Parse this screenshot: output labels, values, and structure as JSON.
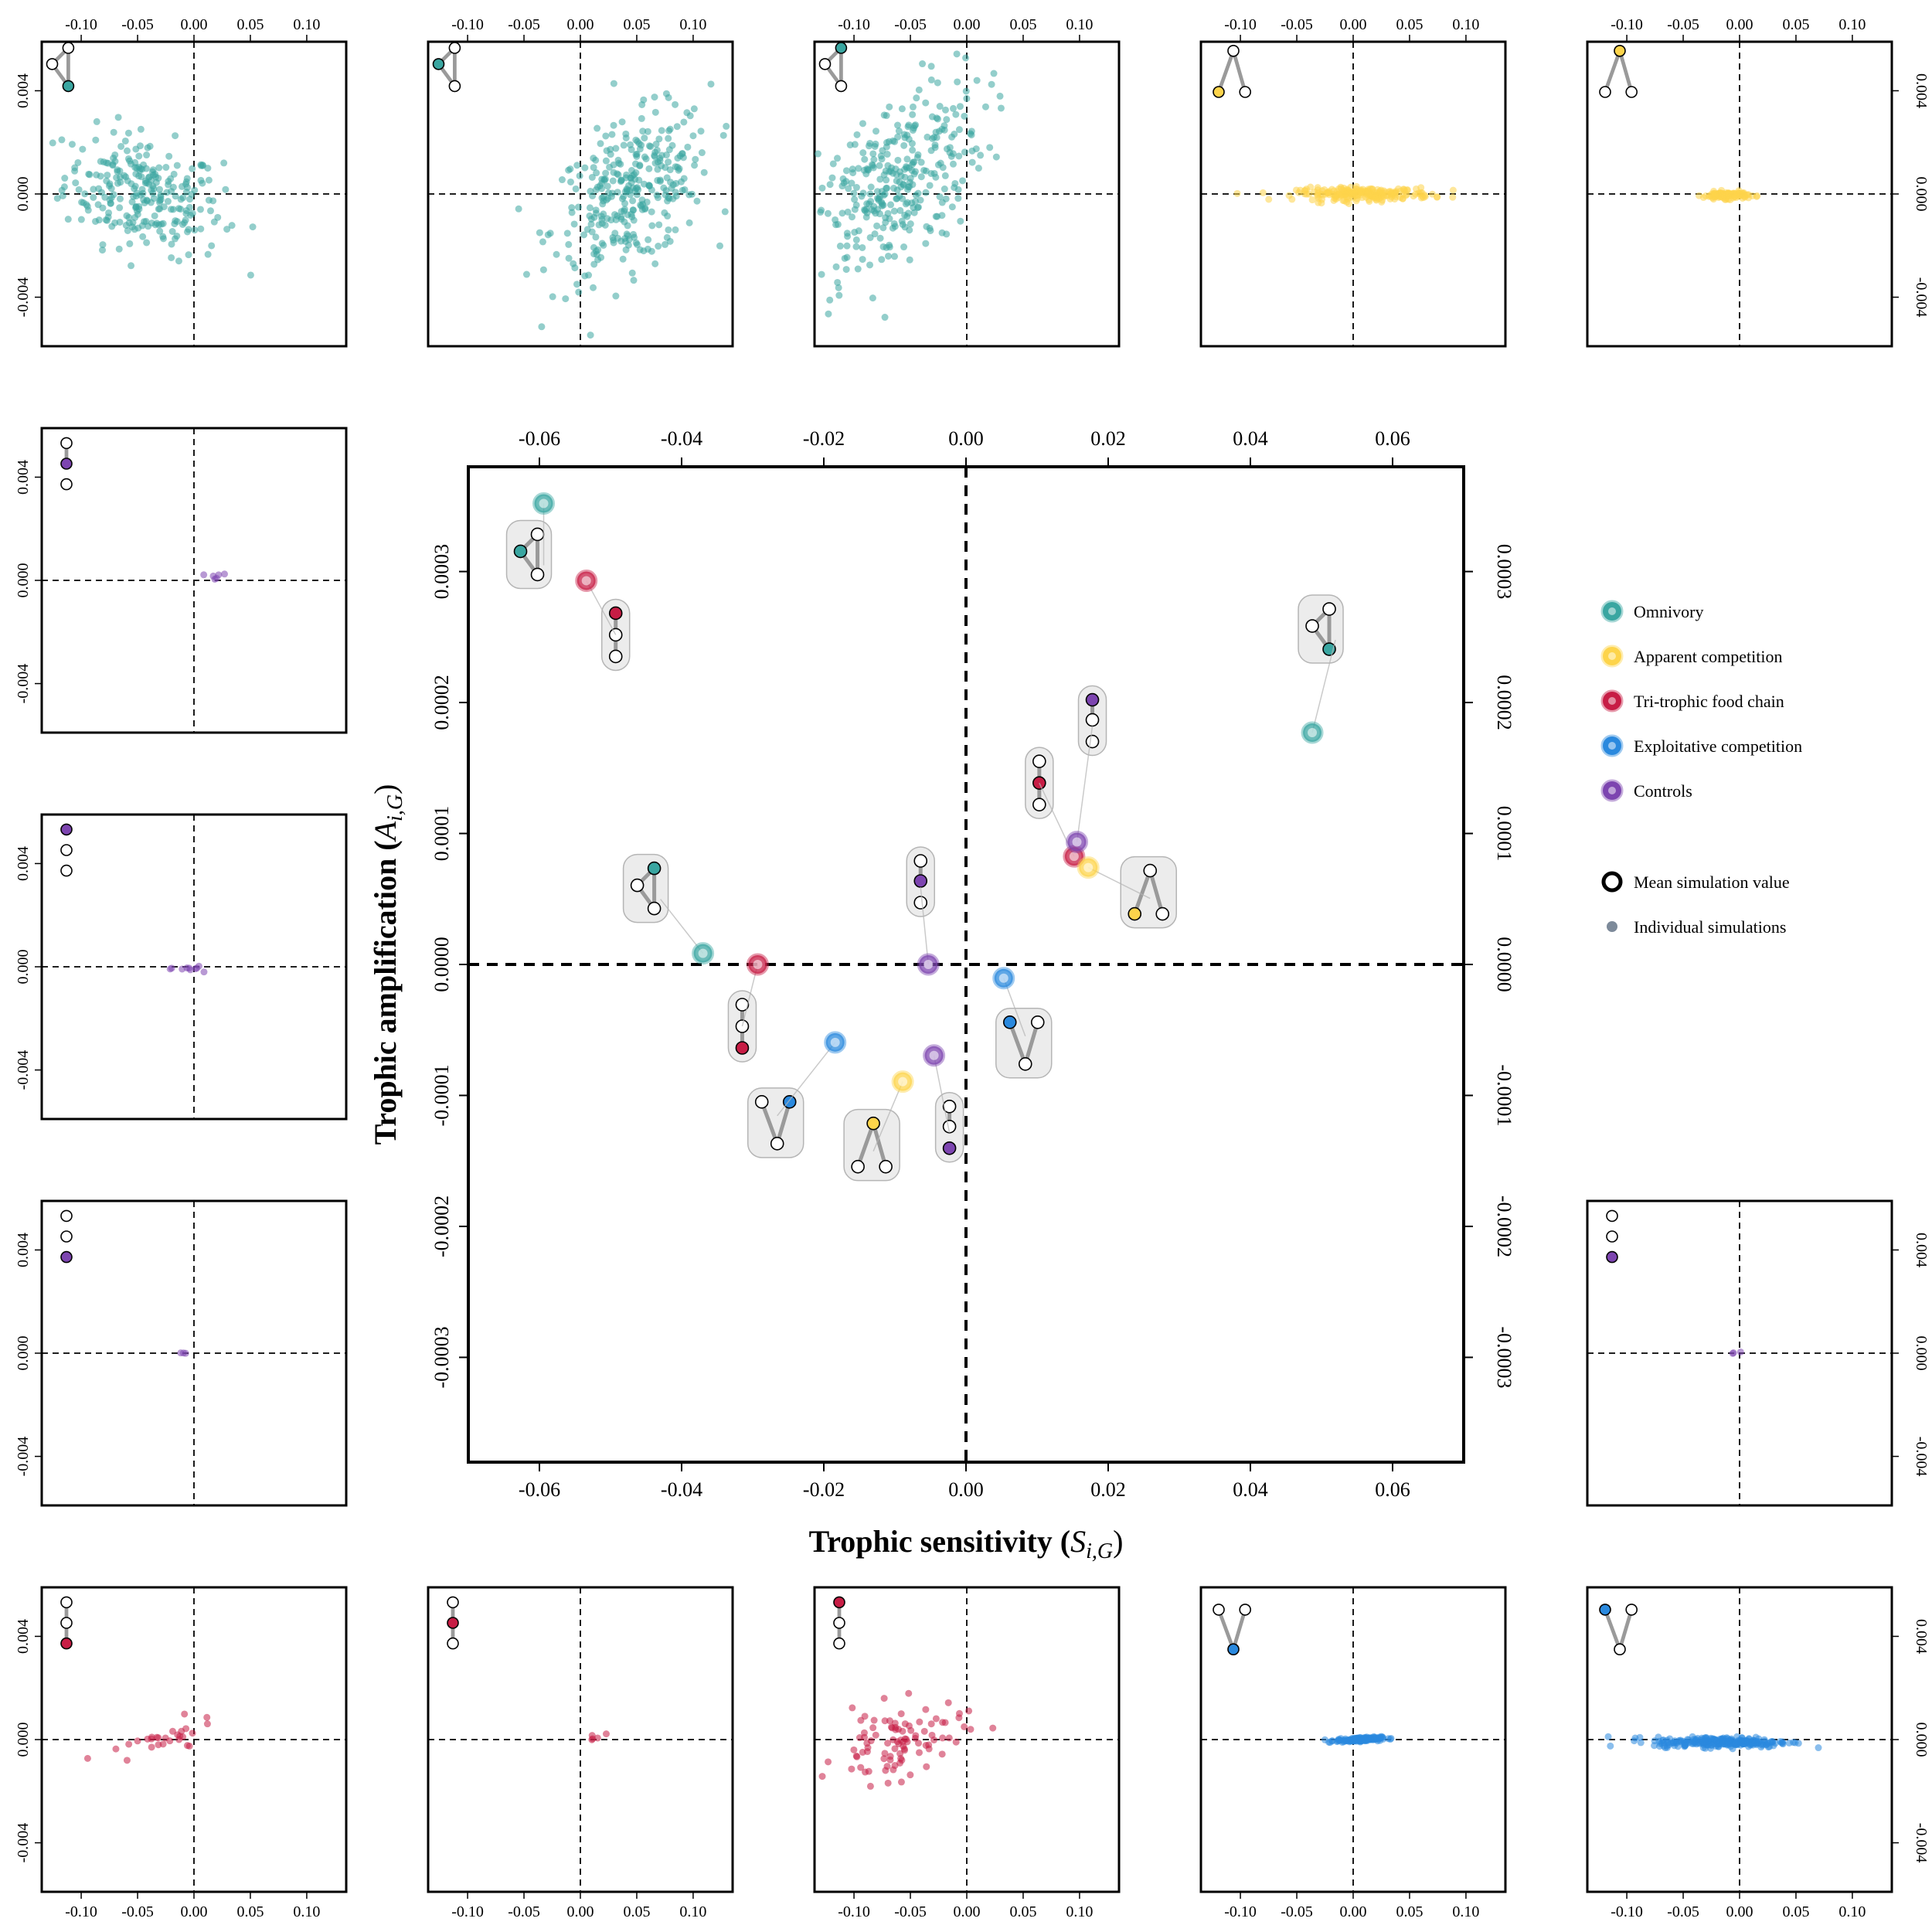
{
  "colors": {
    "omnivory": "#3aa6a1",
    "apparent_competition": "#fdd44b",
    "tri_trophic_food_chain": "#c71d45",
    "exploitative_competition": "#2a89de",
    "controls": "#7d45b0",
    "mean": "#000000",
    "individual": "#7d8a9a"
  },
  "legend": {
    "items": [
      {
        "key": "omnivory",
        "label": "Omnivory"
      },
      {
        "key": "apparent_competition",
        "label": "Apparent competition"
      },
      {
        "key": "tri_trophic_food_chain",
        "label": "Tri-trophic food chain"
      },
      {
        "key": "exploitative_competition",
        "label": "Exploitative competition"
      },
      {
        "key": "controls",
        "label": "Controls"
      }
    ],
    "extra": [
      {
        "key": "mean",
        "label": "Mean simulation value"
      },
      {
        "key": "individual",
        "label": "Individual simulations"
      }
    ]
  },
  "chart_data": {
    "type": "scatter",
    "main": {
      "xlabel": "Trophic sensitivity",
      "xlabel_symbol": "S",
      "xlabel_sub": "i,G",
      "ylabel": "Trophic amplification",
      "ylabel_symbol": "A",
      "ylabel_sub": "i,G",
      "xlim": [
        -0.07,
        0.07
      ],
      "ylim": [
        -0.00038,
        0.00038
      ],
      "xticks": [
        "-0.06",
        "-0.04",
        "-0.02",
        "0.00",
        "0.02",
        "0.04",
        "0.06"
      ],
      "xtick_values": [
        -0.06,
        -0.04,
        -0.02,
        0,
        0.02,
        0.04,
        0.06
      ],
      "yticks": [
        "-0.0003",
        "-0.0002",
        "-0.0001",
        "0.0000",
        "0.0001",
        "0.0002",
        "0.0003"
      ],
      "ytick_values": [
        -0.0003,
        -0.0002,
        -0.0001,
        0,
        0.0001,
        0.0002,
        0.0003
      ],
      "points": [
        {
          "group": "omnivory",
          "node": 0,
          "x": -0.0594,
          "y": 0.000352,
          "motif": "tri_omni"
        },
        {
          "group": "tri_trophic_food_chain",
          "node": 0,
          "x": -0.0534,
          "y": 0.000293,
          "motif": "chain"
        },
        {
          "group": "omnivory",
          "node": 1,
          "x": -0.037,
          "y": 8.5e-06,
          "motif": "tri_omni"
        },
        {
          "group": "tri_trophic_food_chain",
          "node": 2,
          "x": -0.0293,
          "y": 0.0,
          "motif": "chain"
        },
        {
          "group": "exploitative_competition",
          "node": 1,
          "x": -0.0184,
          "y": -5.95e-05,
          "motif": "v"
        },
        {
          "group": "apparent_competition",
          "node": 0,
          "x": -0.0089,
          "y": -8.95e-05,
          "motif": "lambda"
        },
        {
          "group": "controls",
          "node": 1,
          "x": -0.0053,
          "y": 0.0,
          "motif": "pair"
        },
        {
          "group": "controls",
          "node": 2,
          "x": -0.0045,
          "y": -6.95e-05,
          "motif": "pair"
        },
        {
          "group": "exploitative_competition",
          "node": 0,
          "x": 0.0053,
          "y": -1.05e-05,
          "motif": "v"
        },
        {
          "group": "tri_trophic_food_chain",
          "node": 1,
          "x": 0.0152,
          "y": 8.25e-05,
          "motif": "chain"
        },
        {
          "group": "controls",
          "node": 0,
          "x": 0.0156,
          "y": 9.35e-05,
          "motif": "pair"
        },
        {
          "group": "apparent_competition",
          "node": 1,
          "x": 0.0172,
          "y": 7.4e-05,
          "motif": "lambda"
        },
        {
          "group": "omnivory",
          "node": 2,
          "x": 0.0487,
          "y": 0.000177,
          "motif": "tri_omni"
        }
      ]
    },
    "small_multiples": {
      "xticks": [
        "-0.10",
        "-0.05",
        "0.00",
        "0.05",
        "0.10"
      ],
      "xtick_values": [
        -0.1,
        -0.05,
        0,
        0.05,
        0.1
      ],
      "yticks": [
        "-0.004",
        "0.000",
        "0.004"
      ],
      "ytick_values": [
        -0.004,
        0,
        0.004
      ],
      "xlim": [
        -0.135,
        0.135
      ],
      "ylim": [
        -0.0059,
        0.0059
      ],
      "panels": [
        {
          "id": "omni-1",
          "group": "omnivory",
          "motif": "tri_omni",
          "highlight": 2,
          "cloud": {
            "cx": -0.045,
            "cy": 0.0,
            "sx": 0.035,
            "sy": 0.0011,
            "n": 260,
            "tilt": -0.01
          }
        },
        {
          "id": "omni-2",
          "group": "omnivory",
          "motif": "tri_omni",
          "highlight": 0,
          "cloud": {
            "cx": 0.045,
            "cy": 0.0,
            "sx": 0.035,
            "sy": 0.0014,
            "n": 320,
            "tilt": 0.02
          }
        },
        {
          "id": "omni-3",
          "group": "omnivory",
          "motif": "tri_omni",
          "highlight": 1,
          "cloud": {
            "cx": -0.065,
            "cy": 0.0003,
            "sx": 0.04,
            "sy": 0.0017,
            "n": 340,
            "tilt": 0.03
          }
        },
        {
          "id": "app-1",
          "group": "apparent_competition",
          "motif": "lambda",
          "highlight": 1,
          "cloud": {
            "cx": 0.01,
            "cy": 0.0,
            "sx": 0.03,
            "sy": 0.00012,
            "n": 220,
            "tilt": 0.0
          }
        },
        {
          "id": "app-2",
          "group": "apparent_competition",
          "motif": "lambda",
          "highlight": 0,
          "cloud": {
            "cx": -0.012,
            "cy": -5e-05,
            "sx": 0.01,
            "sy": 7e-05,
            "n": 120,
            "tilt": 0.0
          }
        },
        {
          "id": "ctrl-1",
          "group": "controls",
          "motif": "pair_top",
          "highlight": 1,
          "cloud": {
            "cx": 0.018,
            "cy": 7e-05,
            "sx": 0.008,
            "sy": 8e-05,
            "n": 6,
            "tilt": 0.005
          }
        },
        {
          "id": "ctrl-2",
          "group": "controls",
          "motif": "pair_bottom",
          "highlight": 0,
          "cloud": {
            "cx": 0.0,
            "cy": -5e-05,
            "sx": 0.008,
            "sy": 6e-05,
            "n": 10,
            "tilt": 0.0
          }
        },
        {
          "id": "ctrl-3",
          "group": "controls",
          "motif": "pair_bottom",
          "highlight": 2,
          "cloud": {
            "cx": -0.008,
            "cy": 0.0,
            "sx": 0.002,
            "sy": 2e-05,
            "n": 3,
            "tilt": 0.0
          }
        },
        {
          "id": "ctrl-4",
          "group": "controls",
          "motif": "pair_bottom",
          "highlight": 2,
          "cloud": {
            "cx": -0.004,
            "cy": 0.0,
            "sx": 0.003,
            "sy": 2e-05,
            "n": 3,
            "tilt": 0.0
          }
        },
        {
          "id": "chain-1",
          "group": "tri_trophic_food_chain",
          "motif": "chain",
          "highlight": 2,
          "cloud": {
            "cx": -0.03,
            "cy": -0.0001,
            "sx": 0.025,
            "sy": 0.0003,
            "n": 28,
            "tilt": 0.01
          }
        },
        {
          "id": "chain-2",
          "group": "tri_trophic_food_chain",
          "motif": "chain",
          "highlight": 1,
          "cloud": {
            "cx": 0.015,
            "cy": 0.0001,
            "sx": 0.008,
            "sy": 8e-05,
            "n": 5,
            "tilt": 0.01
          }
        },
        {
          "id": "chain-3",
          "group": "tri_trophic_food_chain",
          "motif": "chain",
          "highlight": 0,
          "cloud": {
            "cx": -0.06,
            "cy": -0.0001,
            "sx": 0.028,
            "sy": 0.0007,
            "n": 95,
            "tilt": 0.01
          }
        },
        {
          "id": "exp-1",
          "group": "exploitative_competition",
          "motif": "v",
          "highlight": 2,
          "cloud": {
            "cx": 0.005,
            "cy": 0.0,
            "sx": 0.01,
            "sy": 4e-05,
            "n": 160,
            "tilt": 0.002
          }
        },
        {
          "id": "exp-2",
          "group": "exploitative_competition",
          "motif": "v",
          "highlight": 0,
          "cloud": {
            "cx": -0.015,
            "cy": -0.0001,
            "sx": 0.03,
            "sy": 0.0001,
            "n": 260,
            "tilt": 0.0
          }
        }
      ]
    }
  }
}
